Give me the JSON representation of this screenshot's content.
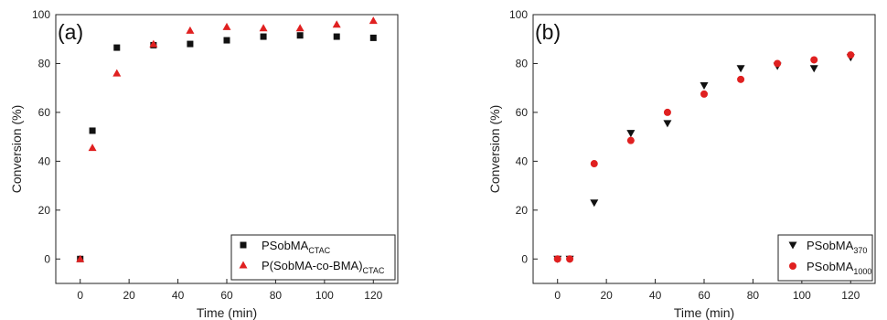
{
  "colors": {
    "black": "#111111",
    "red": "#e02020",
    "axis": "#222222"
  },
  "chart_data": [
    {
      "type": "scatter",
      "panel_label": "(a)",
      "xlabel": "Time (min)",
      "ylabel": "Conversion (%)",
      "xlim": [
        -10,
        130
      ],
      "ylim": [
        -10,
        100
      ],
      "xticks": [
        0,
        20,
        40,
        60,
        80,
        100,
        120
      ],
      "yticks": [
        0,
        20,
        40,
        60,
        80,
        100
      ],
      "grid": false,
      "legend_position": "bottom-right",
      "series": [
        {
          "name": "PSobMA",
          "name_sub": "CTAC",
          "marker": "square",
          "color": "#111111",
          "points": [
            [
              0,
              0
            ],
            [
              5,
              52.5
            ],
            [
              15,
              86.5
            ],
            [
              30,
              87.5
            ],
            [
              45,
              88
            ],
            [
              60,
              89.5
            ],
            [
              75,
              91
            ],
            [
              90,
              91.5
            ],
            [
              105,
              91
            ],
            [
              120,
              90.5
            ]
          ]
        },
        {
          "name": "P(SobMA-co-BMA)",
          "name_sub": "CTAC",
          "marker": "triangle-up",
          "color": "#e02020",
          "points": [
            [
              0,
              0
            ],
            [
              5,
              45.5
            ],
            [
              15,
              76
            ],
            [
              30,
              88
            ],
            [
              45,
              93.5
            ],
            [
              60,
              95
            ],
            [
              75,
              94.5
            ],
            [
              90,
              94.5
            ],
            [
              105,
              96
            ],
            [
              120,
              97.5
            ]
          ]
        }
      ]
    },
    {
      "type": "scatter",
      "panel_label": "(b)",
      "xlabel": "Time (min)",
      "ylabel": "Conversion (%)",
      "xlim": [
        -10,
        130
      ],
      "ylim": [
        -10,
        100
      ],
      "xticks": [
        0,
        20,
        40,
        60,
        80,
        100,
        120
      ],
      "yticks": [
        0,
        20,
        40,
        60,
        80,
        100
      ],
      "grid": false,
      "legend_position": "bottom-right",
      "series": [
        {
          "name": "PSobMA",
          "name_sub": "370",
          "marker": "triangle-down",
          "color": "#111111",
          "points": [
            [
              0,
              0
            ],
            [
              5,
              0
            ],
            [
              15,
              23
            ],
            [
              30,
              51.5
            ],
            [
              45,
              55.5
            ],
            [
              60,
              71
            ],
            [
              75,
              78
            ],
            [
              90,
              79
            ],
            [
              105,
              78
            ],
            [
              120,
              82.5
            ]
          ]
        },
        {
          "name": "PSobMA",
          "name_sub": "1000",
          "marker": "circle",
          "color": "#e02020",
          "points": [
            [
              0,
              0
            ],
            [
              5,
              0
            ],
            [
              15,
              39
            ],
            [
              30,
              48.5
            ],
            [
              45,
              60
            ],
            [
              60,
              67.5
            ],
            [
              75,
              73.5
            ],
            [
              90,
              80
            ],
            [
              105,
              81.5
            ],
            [
              120,
              83.5
            ]
          ]
        }
      ]
    }
  ]
}
